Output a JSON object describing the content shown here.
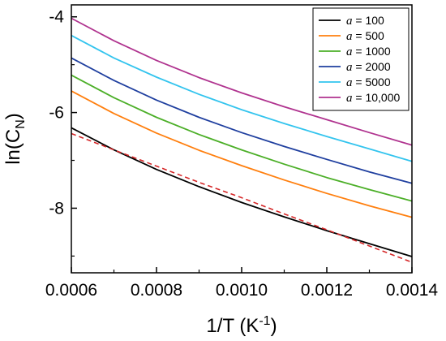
{
  "chart_data": {
    "type": "line",
    "xlabel": "1/T (K",
    "xlabel_sup": "-1",
    "xlabel_close": ")",
    "ylabel": "ln(C",
    "ylabel_sub": "N",
    "ylabel_close": ")",
    "xlim": [
      0.0006,
      0.0014
    ],
    "ylim": [
      -9.35,
      -3.75
    ],
    "xticks": [
      0.0006,
      0.0008,
      0.001,
      0.0012,
      0.0014
    ],
    "xtick_labels": [
      "0.0006",
      "0.0008",
      "0.0010",
      "0.0012",
      "0.0014"
    ],
    "yticks": [
      -8,
      -6,
      -4
    ],
    "ytick_labels": [
      "-8",
      "-6",
      "-4"
    ],
    "grid": false,
    "legend_position": "top-right",
    "x": [
      0.0006,
      0.0007,
      0.0008,
      0.0009,
      0.001,
      0.0011,
      0.0012,
      0.0013,
      0.0014
    ],
    "series": [
      {
        "name": "a = 100",
        "name_var": "a",
        "name_rest": " = 100",
        "color": "#000000",
        "dashed": false,
        "values": [
          -6.32,
          -6.78,
          -7.19,
          -7.55,
          -7.88,
          -8.18,
          -8.47,
          -8.74,
          -9.01
        ]
      },
      {
        "name": "a = 500",
        "name_var": "a",
        "name_rest": " = 500",
        "color": "#ff7f0e",
        "dashed": false,
        "values": [
          -5.55,
          -6.02,
          -6.43,
          -6.79,
          -7.11,
          -7.41,
          -7.69,
          -7.95,
          -8.19
        ]
      },
      {
        "name": "a = 1000",
        "name_var": "a",
        "name_rest": " = 1000",
        "color": "#4caf28",
        "dashed": false,
        "values": [
          -5.22,
          -5.69,
          -6.1,
          -6.46,
          -6.78,
          -7.08,
          -7.36,
          -7.61,
          -7.85
        ]
      },
      {
        "name": "a = 2000",
        "name_var": "a",
        "name_rest": " = 2000",
        "color": "#1f3f9f",
        "dashed": false,
        "values": [
          -4.86,
          -5.33,
          -5.74,
          -6.1,
          -6.42,
          -6.71,
          -6.98,
          -7.24,
          -7.48
        ]
      },
      {
        "name": "a = 5000",
        "name_var": "a",
        "name_rest": " = 5000",
        "color": "#33c4ee",
        "dashed": false,
        "values": [
          -4.39,
          -4.86,
          -5.26,
          -5.62,
          -5.94,
          -6.23,
          -6.5,
          -6.76,
          -7.02
        ]
      },
      {
        "name": "a = 10,000",
        "name_var": "a",
        "name_rest": " = 10,000",
        "color": "#b0338f",
        "dashed": false,
        "values": [
          -4.03,
          -4.5,
          -4.91,
          -5.27,
          -5.59,
          -5.88,
          -6.15,
          -6.42,
          -6.68
        ]
      },
      {
        "color": "#d62728",
        "dashed": true,
        "values": [
          -6.44,
          -6.78,
          -7.12,
          -7.46,
          -7.78,
          -8.12,
          -8.45,
          -8.79,
          -9.13
        ]
      }
    ]
  }
}
